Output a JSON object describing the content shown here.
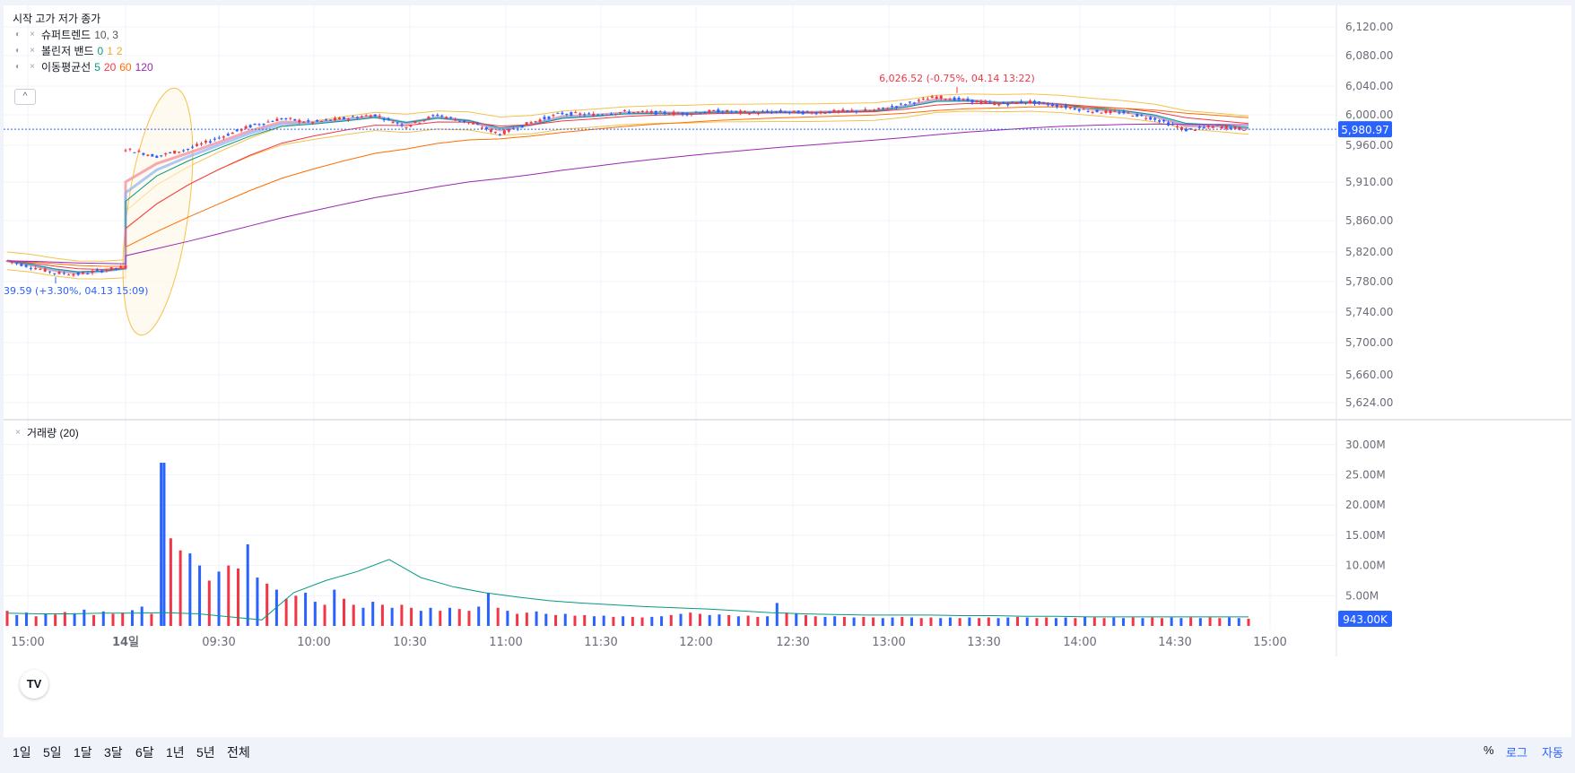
{
  "legend": {
    "ohlc_label": "시작 고가 저가 종가",
    "supertrend": {
      "name": "슈퍼트렌드",
      "params": "10, 3"
    },
    "bollinger": {
      "name": "볼린저 밴드",
      "p0": "0",
      "p1": "1",
      "p2": "2"
    },
    "ma": {
      "name": "이동평균선",
      "p5": "5",
      "p20": "20",
      "p60": "60",
      "p120": "120"
    },
    "collapse": "^",
    "volume": "거래량 (20)"
  },
  "range_buttons": [
    "1일",
    "5일",
    "1달",
    "3달",
    "6달",
    "1년",
    "5년",
    "전체"
  ],
  "right_buttons": {
    "percent": "%",
    "log": "로그",
    "auto": "자동"
  },
  "logo": "TV",
  "colors": {
    "up": "#f23645",
    "down": "#2962ff",
    "ma5": "#089981",
    "ma20": "#f23645",
    "ma60": "#ff6d00",
    "ma120": "#9c27b0",
    "bollinger": "#f5c24a",
    "price_tag": "#2962ff",
    "volume_ma": "#089981"
  },
  "chart_data": {
    "type": "candlestick",
    "price_axis": {
      "ticks": [
        6120,
        6080,
        6040,
        6000,
        5960,
        5910,
        5860,
        5820,
        5780,
        5740,
        5700,
        5660,
        5624
      ],
      "tick_labels": [
        "6,120.00",
        "6,080.00",
        "6,040.00",
        "6,000.00",
        "5,960.00",
        "5,910.00",
        "5,860.00",
        "5,820.00",
        "5,780.00",
        "5,740.00",
        "5,700.00",
        "5,660.00",
        "5,624.00"
      ]
    },
    "volume_axis": {
      "ticks": [
        30,
        25,
        20,
        15,
        10,
        5
      ],
      "tick_labels": [
        "30.00M",
        "25.00M",
        "20.00M",
        "15.00M",
        "10.00M",
        "5.00M"
      ],
      "unit": "M"
    },
    "time_axis": {
      "tick_labels": [
        "15:00",
        "14일",
        "09:30",
        "10:00",
        "10:30",
        "11:00",
        "11:30",
        "12:00",
        "12:30",
        "13:00",
        "13:30",
        "14:00",
        "14:30",
        "15:00"
      ]
    },
    "current_price": {
      "value": 5980.97,
      "label": "5,980.97"
    },
    "current_volume": {
      "value": 0.943,
      "label": "943.00K"
    },
    "high_annotation": {
      "value": 6026.52,
      "label": "6,026.52 (-0.75%, 04.14 13:22)"
    },
    "low_annotation": {
      "value": 5789.59,
      "label": "39.59 (+3.30%, 04.13 15:09)"
    },
    "price_path": [
      {
        "t": "04.13 14:40",
        "close": 5808
      },
      {
        "t": "04.13 14:50",
        "close": 5800
      },
      {
        "t": "04.13 15:00",
        "close": 5792
      },
      {
        "t": "04.13 15:09",
        "close": 5790
      },
      {
        "t": "04.13 15:20",
        "close": 5795
      },
      {
        "t": "04.13 15:30",
        "close": 5800
      },
      {
        "t": "09:00",
        "close": 5955
      },
      {
        "t": "09:10",
        "close": 5945
      },
      {
        "t": "09:20",
        "close": 5955
      },
      {
        "t": "09:30",
        "close": 5970
      },
      {
        "t": "09:40",
        "close": 5985
      },
      {
        "t": "09:50",
        "close": 5995
      },
      {
        "t": "10:00",
        "close": 5990
      },
      {
        "t": "10:10",
        "close": 5995
      },
      {
        "t": "10:20",
        "close": 6000
      },
      {
        "t": "10:30",
        "close": 5985
      },
      {
        "t": "10:40",
        "close": 6000
      },
      {
        "t": "10:50",
        "close": 5990
      },
      {
        "t": "11:00",
        "close": 5975
      },
      {
        "t": "11:10",
        "close": 5990
      },
      {
        "t": "11:20",
        "close": 6002
      },
      {
        "t": "11:30",
        "close": 6000
      },
      {
        "t": "11:40",
        "close": 6004
      },
      {
        "t": "11:50",
        "close": 6003
      },
      {
        "t": "12:00",
        "close": 6002
      },
      {
        "t": "12:10",
        "close": 6005
      },
      {
        "t": "12:20",
        "close": 6003
      },
      {
        "t": "12:30",
        "close": 6004
      },
      {
        "t": "12:40",
        "close": 6003
      },
      {
        "t": "12:50",
        "close": 6005
      },
      {
        "t": "13:00",
        "close": 6006
      },
      {
        "t": "13:10",
        "close": 6015
      },
      {
        "t": "13:20",
        "close": 6025
      },
      {
        "t": "13:30",
        "close": 6020
      },
      {
        "t": "13:40",
        "close": 6015
      },
      {
        "t": "13:50",
        "close": 6018
      },
      {
        "t": "14:00",
        "close": 6012
      },
      {
        "t": "14:10",
        "close": 6005
      },
      {
        "t": "14:20",
        "close": 6003
      },
      {
        "t": "14:30",
        "close": 5995
      },
      {
        "t": "14:40",
        "close": 5980
      },
      {
        "t": "14:50",
        "close": 5985
      },
      {
        "t": "14:55",
        "close": 5981
      }
    ],
    "volume_bars_millions": [
      2.5,
      1.8,
      2.2,
      1.6,
      2.0,
      1.9,
      2.3,
      2.1,
      2.7,
      1.8,
      2.4,
      2.0,
      2.2,
      2.6,
      3.2,
      2.0,
      27.0,
      14.5,
      12.5,
      12.0,
      10.0,
      7.5,
      9.0,
      10.0,
      9.5,
      13.5,
      8.0,
      7.0,
      6.0,
      4.5,
      5.0,
      5.5,
      4.0,
      3.5,
      6.0,
      4.5,
      3.5,
      3.0,
      4.0,
      3.5,
      3.0,
      3.5,
      3.0,
      2.5,
      3.0,
      2.5,
      3.0,
      2.8,
      2.5,
      3.2,
      5.5,
      3.0,
      2.5,
      2.0,
      2.2,
      2.4,
      2.0,
      1.8,
      2.0,
      1.7,
      1.8,
      1.6,
      1.7,
      1.5,
      1.6,
      1.5,
      1.4,
      1.5,
      1.6,
      1.8,
      2.0,
      2.2,
      2.0,
      1.8,
      1.9,
      1.8,
      1.6,
      1.7,
      1.5,
      1.6,
      3.8,
      2.2,
      2.0,
      1.8,
      1.6,
      1.5,
      1.6,
      1.5,
      1.4,
      1.5,
      1.4,
      1.3,
      1.4,
      1.5,
      1.4,
      1.3,
      1.4,
      1.3,
      1.4,
      1.3,
      1.4,
      1.3,
      1.4,
      1.3,
      1.4,
      1.5,
      1.4,
      1.3,
      1.4,
      1.3,
      1.4,
      1.3,
      1.5,
      1.4,
      1.3,
      1.4,
      1.3,
      1.4,
      1.3,
      1.4,
      1.3,
      1.4,
      1.3,
      1.4,
      1.3,
      1.4,
      1.3,
      1.4,
      1.3,
      1.2
    ],
    "volume_ma_millions": [
      2.1,
      2.0,
      2.0,
      2.1,
      2.1,
      2.2,
      2.0,
      1.5,
      1.0,
      5.5,
      7.5,
      9.0,
      11.0,
      8.0,
      6.5,
      5.5,
      4.8,
      4.2,
      3.8,
      3.5,
      3.2,
      3.0,
      2.8,
      2.5,
      2.2,
      2.0,
      1.9,
      1.8,
      1.8,
      1.8,
      1.7,
      1.7,
      1.6,
      1.6,
      1.5,
      1.5,
      1.5,
      1.5,
      1.5,
      1.5
    ]
  }
}
